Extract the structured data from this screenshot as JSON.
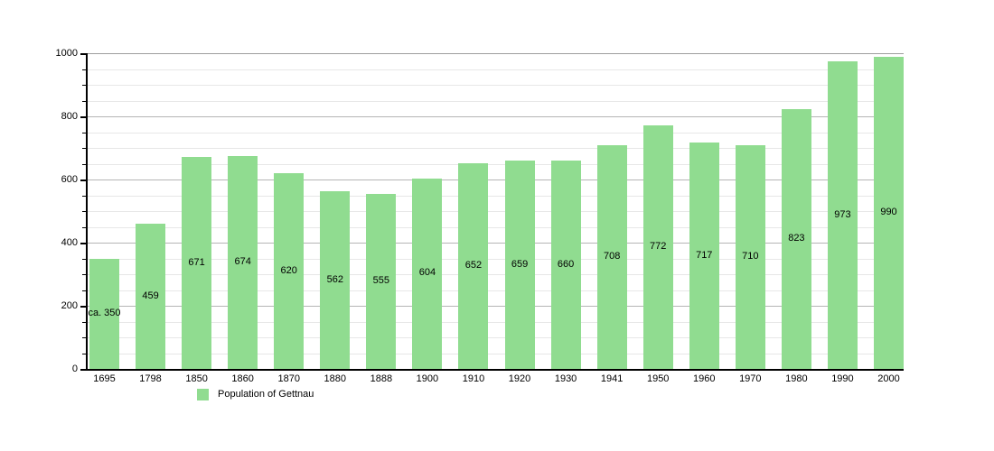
{
  "chart_data": {
    "type": "bar",
    "title": "",
    "legend": [
      {
        "label": "Population of Gettnau",
        "color": "#90dc90"
      }
    ],
    "legend_position": "bottom-left",
    "categories": [
      "1695",
      "1798",
      "1850",
      "1860",
      "1870",
      "1880",
      "1888",
      "1900",
      "1910",
      "1920",
      "1930",
      "1941",
      "1950",
      "1960",
      "1970",
      "1980",
      "1990",
      "2000"
    ],
    "values": [
      350,
      459,
      671,
      674,
      620,
      562,
      555,
      604,
      652,
      659,
      660,
      708,
      772,
      717,
      710,
      823,
      973,
      990
    ],
    "bar_labels": [
      "ca. 350",
      "459",
      "671",
      "674",
      "620",
      "562",
      "555",
      "604",
      "652",
      "659",
      "660",
      "708",
      "772",
      "717",
      "710",
      "823",
      "973",
      "990"
    ],
    "xlabel": "",
    "ylabel": "",
    "ylim": [
      0,
      1000
    ],
    "y_major_ticks": [
      0,
      200,
      400,
      600,
      800,
      1000
    ],
    "y_minor_step": 50,
    "grid": "horizontal-major-and-minor",
    "bar_color": "#90dc90"
  },
  "colors": {
    "background": "#ffffff",
    "bar": "#90dc90",
    "axis": "#000000",
    "major_grid": "#b5b5b5",
    "minor_grid": "#e7e7e7",
    "text": "#000000"
  }
}
